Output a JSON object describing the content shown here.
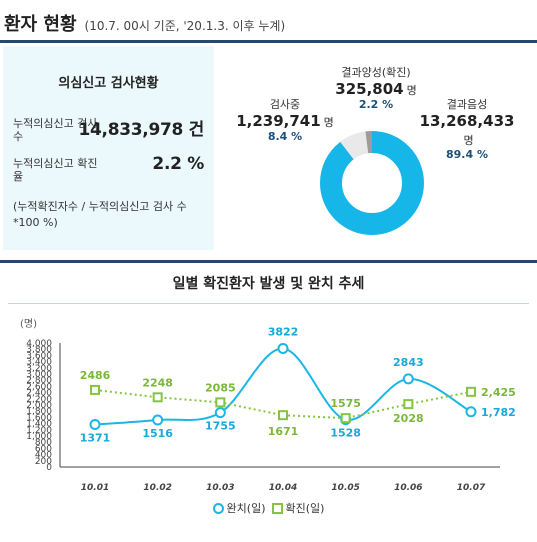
{
  "header": {
    "title": "환자 현황",
    "subtitle": "(10.7. 00시 기준, '20.1.3. 이후 누계)"
  },
  "test_panel": {
    "title": "의심신고 검사현황",
    "total_tests_label": "누적의심신고 검사수",
    "total_tests_value": "14,833,978 건",
    "positive_rate_label": "누적의심신고 확진율",
    "positive_rate_value": "2.2 %",
    "note": "(누적확진자수 / 누적의심신고 검사 수 *100 %)"
  },
  "pie_panel": {
    "slices": [
      {
        "label": "결과음성",
        "value": "13,268,433",
        "unit": "명",
        "percent": "89.4 %",
        "share": 89.4,
        "color": "#16b6e8"
      },
      {
        "label": "검사중",
        "value": "1,239,741",
        "unit": "명",
        "percent": "8.4 %",
        "share": 8.4,
        "color": "#e9e9e9"
      },
      {
        "label": "결과양성(확진)",
        "value": "325,804",
        "unit": "명",
        "percent": "2.2 %",
        "share": 2.2,
        "color": "#9c9c9c"
      }
    ]
  },
  "trend": {
    "title": "일별 확진환자 발생 및 완치 추세",
    "unit_label": "(명)",
    "legend": {
      "recovered": "완치(일)",
      "confirmed": "확진(일)"
    }
  },
  "chart_data": {
    "type": "line",
    "title": "일별 확진환자 발생 및 완치 추세",
    "ylabel": "(명)",
    "ylim": [
      0,
      4000
    ],
    "yticks": [
      "0",
      "200",
      "400",
      "600",
      "800",
      "1,000",
      "1,200",
      "1,400",
      "1,600",
      "1,800",
      "2,000",
      "2,200",
      "2,400",
      "2,600",
      "2,800",
      "3,000",
      "3,200",
      "3,400",
      "3,600",
      "3,800",
      "4,000"
    ],
    "ytick_values": [
      0,
      200,
      400,
      600,
      800,
      1000,
      1200,
      1400,
      1600,
      1800,
      2000,
      2200,
      2400,
      2600,
      2800,
      3000,
      3200,
      3400,
      3600,
      3800,
      4000
    ],
    "categories": [
      "10.01",
      "10.02",
      "10.03",
      "10.04",
      "10.05",
      "10.06",
      "10.07"
    ],
    "series": [
      {
        "name": "완치(일)",
        "values": [
          1371,
          1516,
          1755,
          3822,
          1528,
          2843,
          1782
        ],
        "labels": [
          "1371",
          "1516",
          "1755",
          "3822",
          "1528",
          "2843",
          "1,782"
        ],
        "color": "#1ab6e6",
        "marker": "circle"
      },
      {
        "name": "확진(일)",
        "values": [
          2486,
          2248,
          2085,
          1671,
          1575,
          2028,
          2425
        ],
        "labels": [
          "2486",
          "2248",
          "2085",
          "1671",
          "1575",
          "2028",
          "2,425"
        ],
        "color": "#84c441",
        "marker": "square"
      }
    ],
    "grid": false,
    "legend_position": "bottom"
  }
}
